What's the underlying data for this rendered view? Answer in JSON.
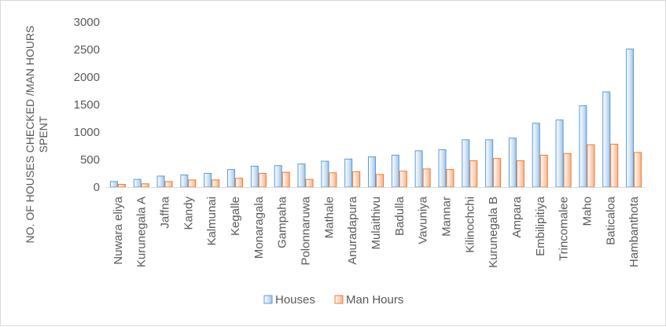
{
  "chart_data": {
    "type": "bar",
    "title": "",
    "ylabel": "NO. OF HOUSES CHECKED /MAN HOURS SPENT",
    "xlabel": "",
    "ylim": [
      0,
      3000
    ],
    "yticks": [
      0,
      500,
      1000,
      1500,
      2000,
      2500,
      3000
    ],
    "grid": false,
    "legend_position": "bottom",
    "categories": [
      "Nuwara eliya",
      "Kurunegala A",
      "Jaffna",
      "Kandy",
      "Kalmunai",
      "Kegalle",
      "Monaragala",
      "Gampaha",
      "Polonnaruwa",
      "Mathale",
      "Anuradapura",
      "Mulaithivu",
      "Badulla",
      "Vavuniya",
      "Mannar",
      "Kilinochchi",
      "Kurunegala B",
      "Ampara",
      "Embilipitiya",
      "Trincomalee",
      "Maho",
      "Baticaloa",
      "Hambanthota"
    ],
    "series": [
      {
        "name": "Houses",
        "color": "#5b9bd5",
        "values": [
          100,
          140,
          200,
          220,
          250,
          320,
          380,
          390,
          420,
          470,
          510,
          550,
          580,
          660,
          680,
          860,
          860,
          890,
          1160,
          1220,
          1480,
          1730,
          2510
        ]
      },
      {
        "name": "Man Hours",
        "color": "#ed7d31",
        "values": [
          50,
          60,
          100,
          130,
          130,
          160,
          250,
          270,
          140,
          260,
          280,
          230,
          290,
          330,
          320,
          480,
          520,
          480,
          580,
          610,
          770,
          780,
          630
        ]
      }
    ]
  }
}
